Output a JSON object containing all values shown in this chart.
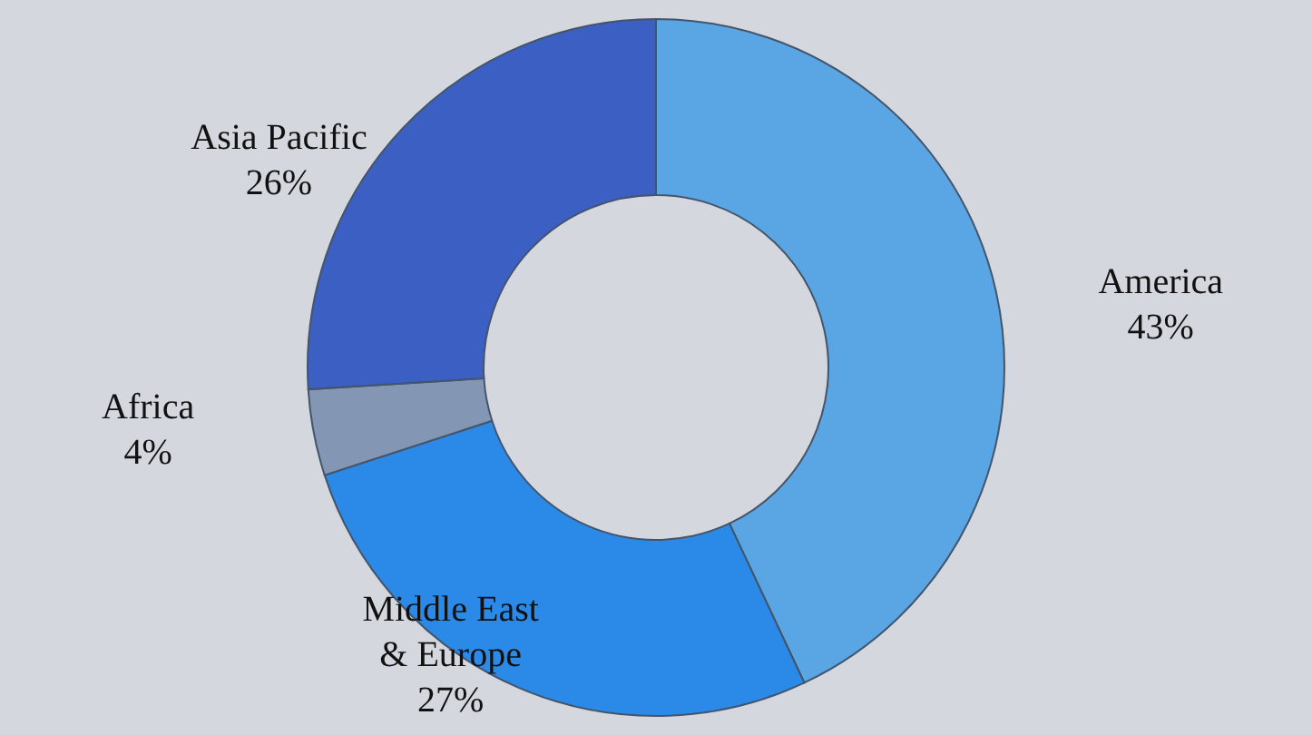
{
  "chart_data": {
    "type": "donut",
    "categories": [
      "America",
      "Middle East & Europe",
      "Africa",
      "Asia Pacific"
    ],
    "values": [
      43,
      27,
      4,
      26
    ],
    "value_labels": [
      "43%",
      "27%",
      "4%",
      "26%"
    ],
    "colors": [
      "#5aa6e4",
      "#2b8ae8",
      "#8396b4",
      "#3b5fc2"
    ]
  }
}
